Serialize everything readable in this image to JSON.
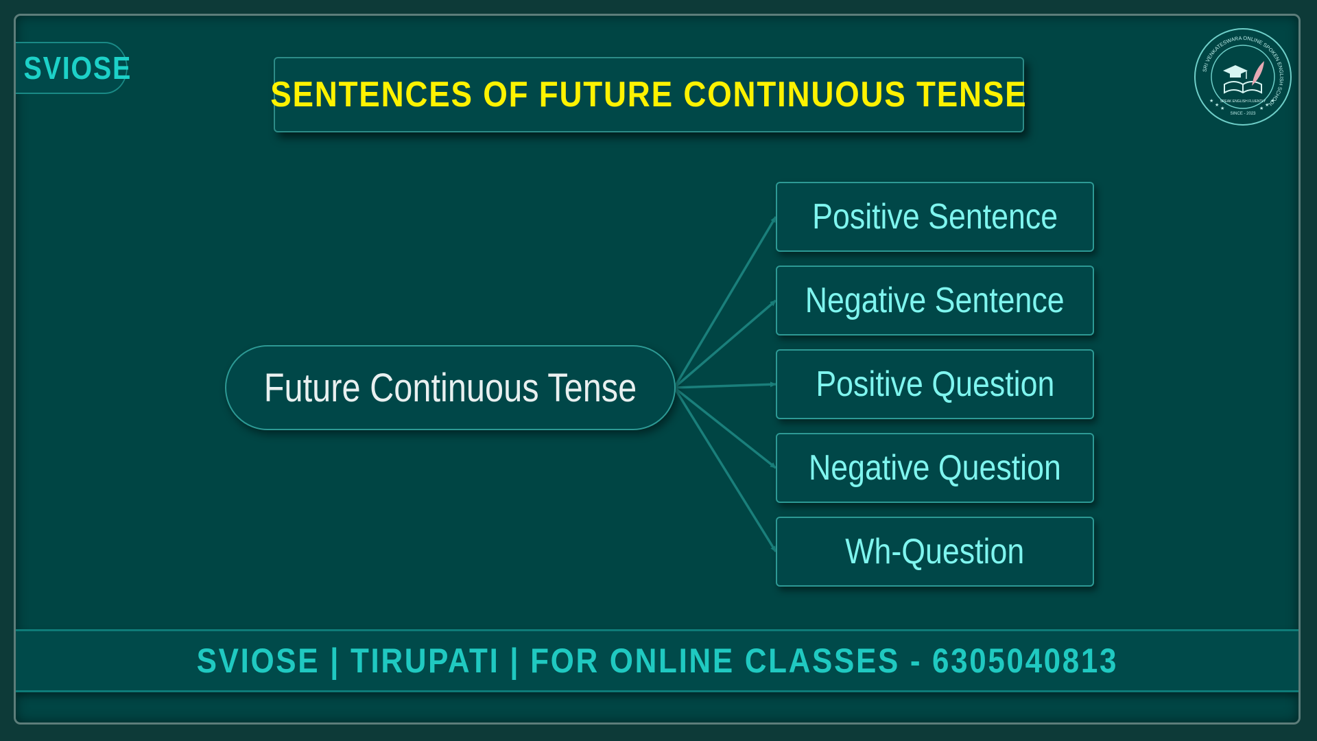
{
  "brand": {
    "label": "SVIOSE"
  },
  "title": {
    "text": "SENTENCES OF FUTURE CONTINUOUS TENSE"
  },
  "diagram": {
    "root": "Future Continuous Tense",
    "branches": [
      "Positive Sentence",
      "Negative Sentence",
      "Positive Question",
      "Negative Question",
      "Wh-Question"
    ]
  },
  "footer": {
    "text": "SVIOSE  |  TIRUPATI  |  FOR ONLINE CLASSES - 6305040813"
  },
  "logo": {
    "icon": "graduation-book-feather-icon",
    "ring_text": "SRI VENKATESWARA ONLINE SPOKEN ENGLISH SCHOOL",
    "inner_text": "SPEAK ENGLISH FLUENTLY",
    "since": "SINCE - 2023"
  },
  "colors": {
    "background": "#004544",
    "title_text": "#fff200",
    "branch_text": "#7ff5ef",
    "root_text": "#e9f0f0",
    "accent": "#1dd1c8",
    "connector": "#1a7f7b"
  }
}
